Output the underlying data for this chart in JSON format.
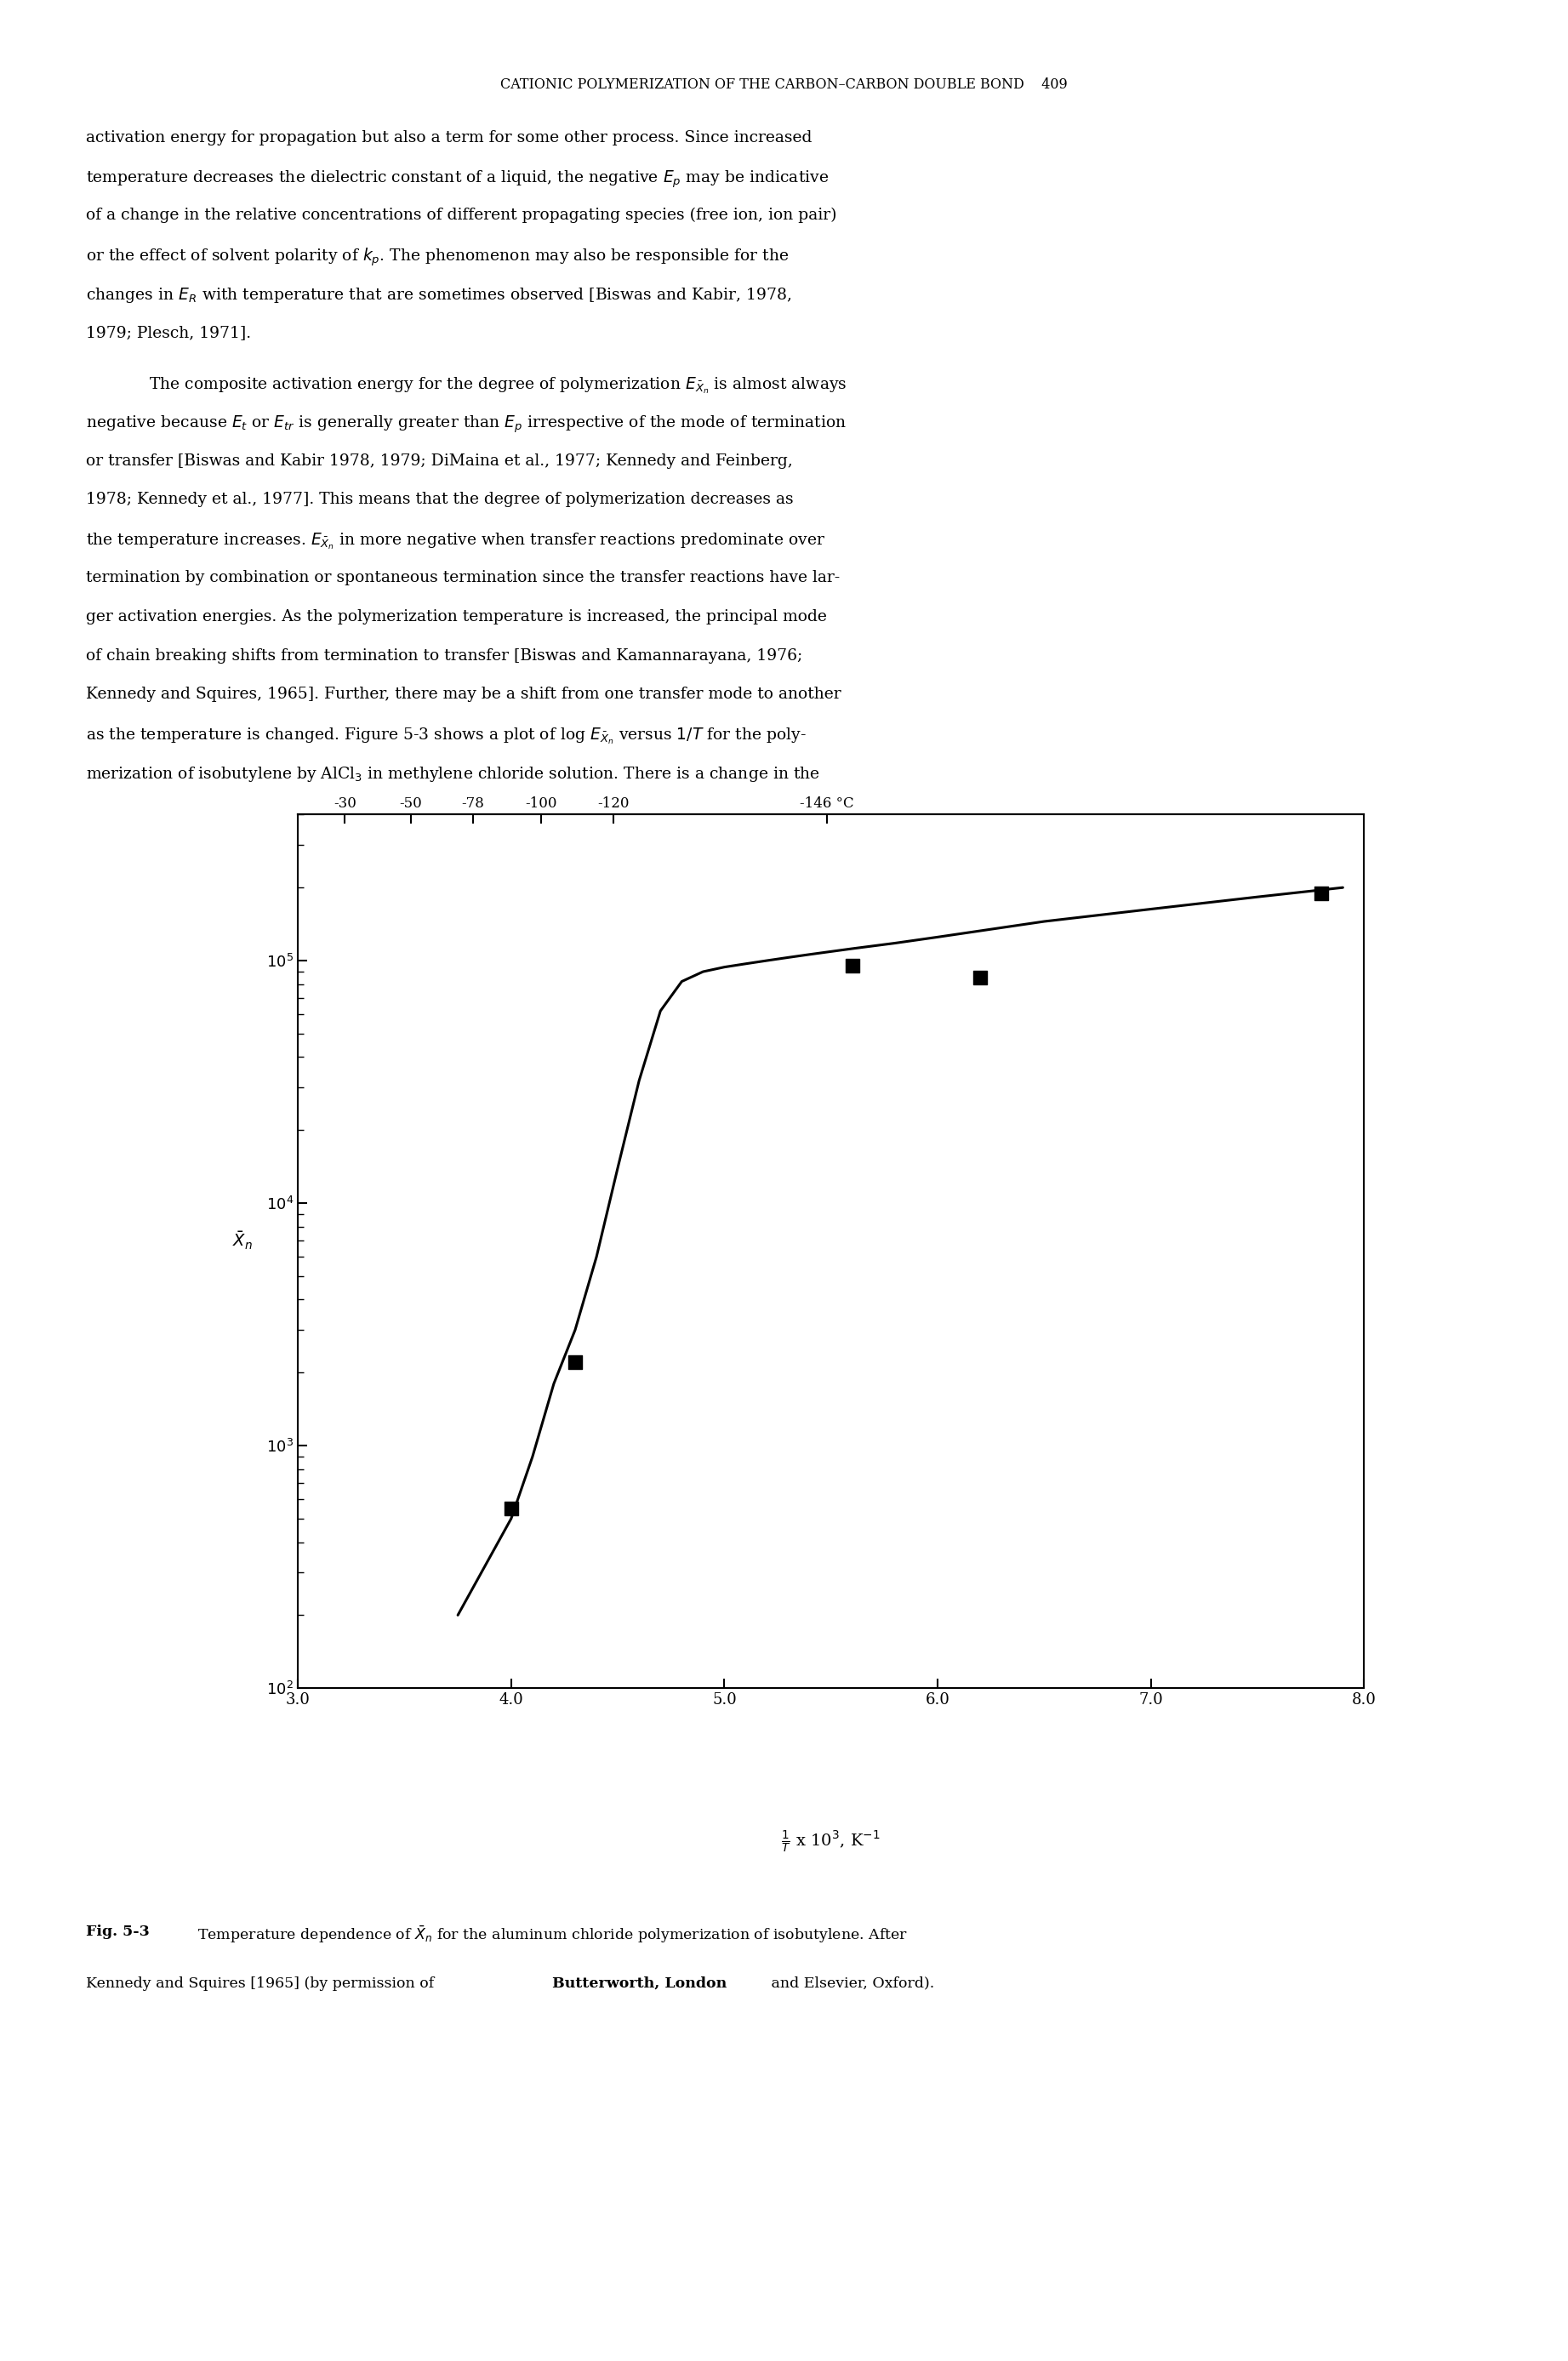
{
  "x_data_points": [
    4.0,
    4.3,
    5.6,
    6.2,
    7.8
  ],
  "y_data_points": [
    550,
    2200,
    95000,
    85000,
    190000
  ],
  "x_line": [
    3.75,
    4.0,
    4.1,
    4.2,
    4.3,
    4.4,
    4.5,
    4.6,
    4.7,
    4.8,
    4.9,
    5.0,
    5.1,
    5.2,
    5.3,
    5.4,
    5.6,
    5.8,
    6.0,
    6.5,
    7.0,
    7.5,
    7.9
  ],
  "y_line": [
    200,
    500,
    900,
    1800,
    3000,
    6000,
    14000,
    32000,
    62000,
    82000,
    90000,
    94000,
    97000,
    100000,
    103000,
    106000,
    112000,
    118000,
    125000,
    145000,
    163000,
    183000,
    200000
  ],
  "xlim": [
    3.0,
    8.0
  ],
  "ylim": [
    100,
    400000
  ],
  "xticks": [
    3.0,
    4.0,
    5.0,
    6.0,
    7.0,
    8.0
  ],
  "xtick_labels": [
    "3.0",
    "4.0",
    "5.0",
    "6.0",
    "7.0",
    "8.0"
  ],
  "yticks": [
    100,
    1000,
    10000,
    100000
  ],
  "top_temp_labels": [
    "-30",
    "-50",
    "-78",
    "-100",
    "-120",
    "-146 °C"
  ],
  "top_temp_positions": [
    3.22,
    3.53,
    3.82,
    4.14,
    4.48,
    5.48
  ],
  "background_color": "#ffffff",
  "line_color": "#000000",
  "marker_color": "#000000",
  "marker_size": 11,
  "linewidth": 2.2,
  "page_title": "CATIONIC POLYMERIZATION OF THE CARBON–CARBON DOUBLE BOND    409",
  "body_text_para1": [
    "activation energy for propagation but also a term for some other process. Since increased",
    "temperature decreases the dielectric constant of a liquid, the negative $E_p$ may be indicative",
    "of a change in the relative concentrations of different propagating species (free ion, ion pair)",
    "or the effect of solvent polarity of $k_p$. The phenomenon may also be responsible for the",
    "changes in $E_R$ with temperature that are sometimes observed [Biswas and Kabir, 1978,",
    "1979; Plesch, 1971]."
  ],
  "body_text_para2": [
    "The composite activation energy for the degree of polymerization $E_{\\bar{X}_n}$ is almost always",
    "negative because $E_t$ or $E_{tr}$ is generally greater than $E_p$ irrespective of the mode of termination",
    "or transfer [Biswas and Kabir 1978, 1979; DiMaina et al., 1977; Kennedy and Feinberg,",
    "1978; Kennedy et al., 1977]. This means that the degree of polymerization decreases as",
    "the temperature increases. $E_{\\bar{X}_n}$ in more negative when transfer reactions predominate over",
    "termination by combination or spontaneous termination since the transfer reactions have lar-",
    "ger activation energies. As the polymerization temperature is increased, the principal mode",
    "of chain breaking shifts from termination to transfer [Biswas and Kamannarayana, 1976;",
    "Kennedy and Squires, 1965]. Further, there may be a shift from one transfer mode to another",
    "as the temperature is changed. Figure 5-3 shows a plot of log $E_{\\bar{X}_n}$ versus $1/T$ for the poly-",
    "merization of isobutylene by AlCl$_3$ in methylene chloride solution. There is a change in the"
  ],
  "fig_caption_bold": "Fig. 5-3",
  "fig_caption_normal": "  Temperature dependence of $\\bar{X}_n$ for the aluminum chloride polymerization of isobutylene. After\nKennedy and Squires [1965] (by permission of ",
  "fig_caption_bold2": "Butterworth, London",
  "fig_caption_normal2": " and Elsevier, Oxford)."
}
